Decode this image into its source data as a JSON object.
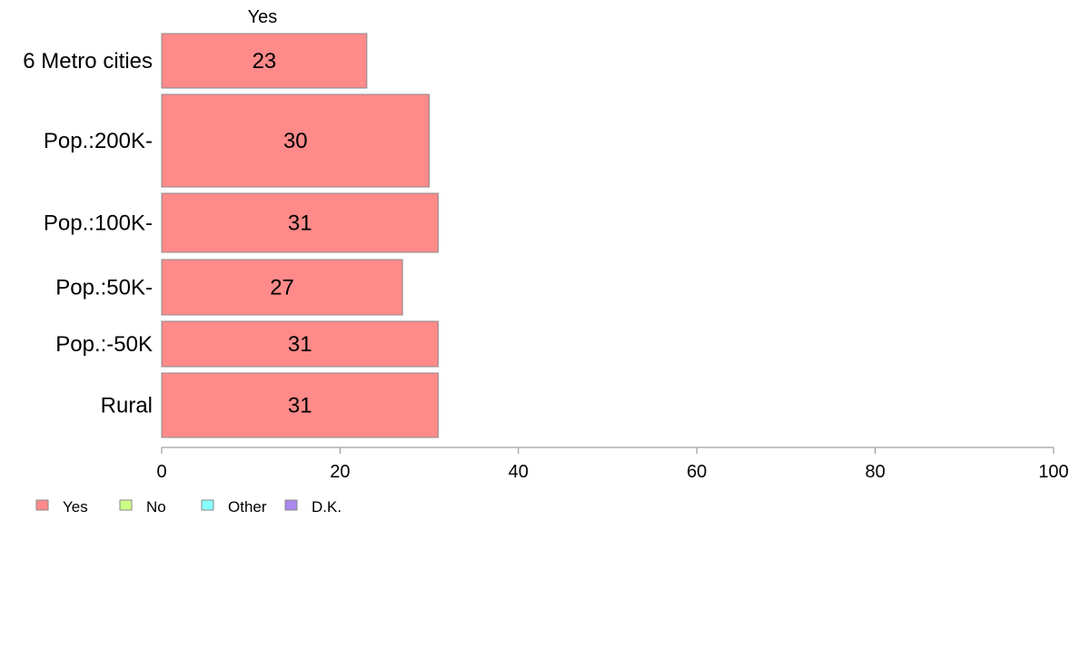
{
  "chart_data": {
    "type": "bar",
    "orientation": "horizontal",
    "series_title": "Yes",
    "categories": [
      "6 Metro cities",
      "Pop.:200K-",
      "Pop.:100K-",
      "Pop.:50K-",
      "Pop.:-50K",
      "Rural"
    ],
    "series": [
      {
        "name": "Yes",
        "values": [
          23,
          30,
          31,
          27,
          31,
          31
        ],
        "color": "#ff8a8a"
      }
    ],
    "xlim": [
      0,
      100
    ],
    "xticks": [
      0,
      20,
      40,
      60,
      80,
      100
    ],
    "legend": [
      {
        "label": "Yes",
        "color": "#ff8a8a"
      },
      {
        "label": "No",
        "color": "#ccff88"
      },
      {
        "label": "Other",
        "color": "#88ffff"
      },
      {
        "label": "D.K.",
        "color": "#aa88ee"
      }
    ],
    "legend_position": "bottom-left",
    "grid": false
  }
}
